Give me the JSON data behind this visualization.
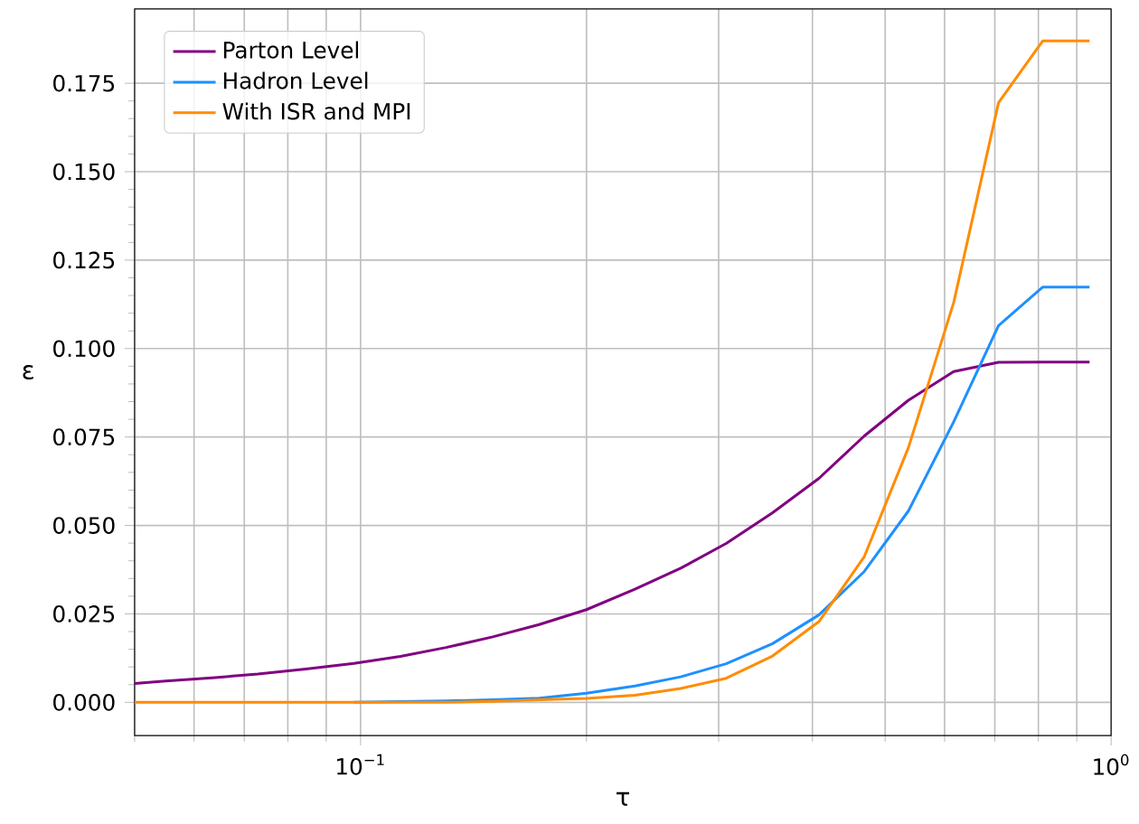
{
  "chart_data": {
    "type": "line",
    "xlabel": "τ",
    "ylabel": "ε",
    "log": "x",
    "grid": true,
    "legend": "top left",
    "x": [
      0.05,
      0.055,
      0.064,
      0.073,
      0.085,
      0.098,
      0.113,
      0.13,
      0.15,
      0.173,
      0.2,
      0.232,
      0.267,
      0.307,
      0.354,
      0.408,
      0.469,
      0.537,
      0.617,
      0.708,
      0.811,
      0.936
    ],
    "series": [
      {
        "name": "Parton Level",
        "color": "#800080",
        "values": [
          0.0053,
          0.006,
          0.007,
          0.008,
          0.0095,
          0.011,
          0.013,
          0.0155,
          0.0185,
          0.022,
          0.0262,
          0.032,
          0.0379,
          0.0449,
          0.0536,
          0.0633,
          0.0753,
          0.0854,
          0.0935,
          0.0961,
          0.0962,
          0.0962
        ]
      },
      {
        "name": "Hadron Level",
        "color": "#1e90ff",
        "values": [
          null,
          null,
          null,
          null,
          null,
          0.0,
          0.0002,
          0.0004,
          0.0007,
          0.0012,
          0.0026,
          0.0046,
          0.0072,
          0.0109,
          0.0166,
          0.0247,
          0.037,
          0.0541,
          0.0793,
          0.1065,
          0.1174,
          0.1174
        ]
      },
      {
        "name": "With ISR and MPI",
        "color": "#ff8c00",
        "values": [
          0.0,
          0.0,
          0.0,
          0.0,
          0.0,
          0.0,
          0.0,
          0.0,
          0.0003,
          0.0007,
          0.0011,
          0.002,
          0.0039,
          0.0068,
          0.0131,
          0.0228,
          0.0412,
          0.072,
          0.113,
          0.1695,
          0.187,
          0.187
        ]
      }
    ],
    "xlim": [
      0.05,
      1.0
    ],
    "ylim": [
      -0.0094,
      0.196
    ],
    "xticks": [
      {
        "value": 0.1,
        "label": "10$^{−1}$"
      },
      {
        "value": 1.0,
        "label": "10$^{0}$"
      }
    ],
    "yticks": [
      {
        "value": 0,
        "label": "0.000"
      },
      {
        "value": 0.025,
        "label": "0.025"
      },
      {
        "value": 0.05,
        "label": "0.050"
      },
      {
        "value": 0.075,
        "label": "0.075"
      },
      {
        "value": 0.1,
        "label": "0.100"
      },
      {
        "value": 0.125,
        "label": "0.125"
      },
      {
        "value": 0.15,
        "label": "0.150"
      },
      {
        "value": 0.175,
        "label": "0.175"
      }
    ]
  }
}
